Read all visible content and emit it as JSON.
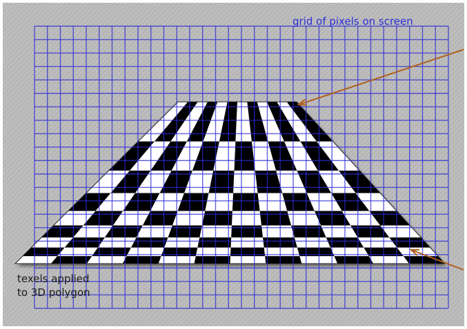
{
  "labels": {
    "pixel_grid": "grid of pixels on screen",
    "texels_line1": "texels applied",
    "texels_line2": "to 3D polygon"
  },
  "colors": {
    "background": "#b8b8b8",
    "grid_lines": "#2b2bd6",
    "pixel_grid_label": "#2d2dd8",
    "arrow": "#b0601c",
    "checker_dark": "#000000",
    "checker_light": "#ffffff"
  },
  "pixel_grid": {
    "columns": 32,
    "rows": 21
  },
  "checkerboard": {
    "columns": 12,
    "rows": 9
  }
}
